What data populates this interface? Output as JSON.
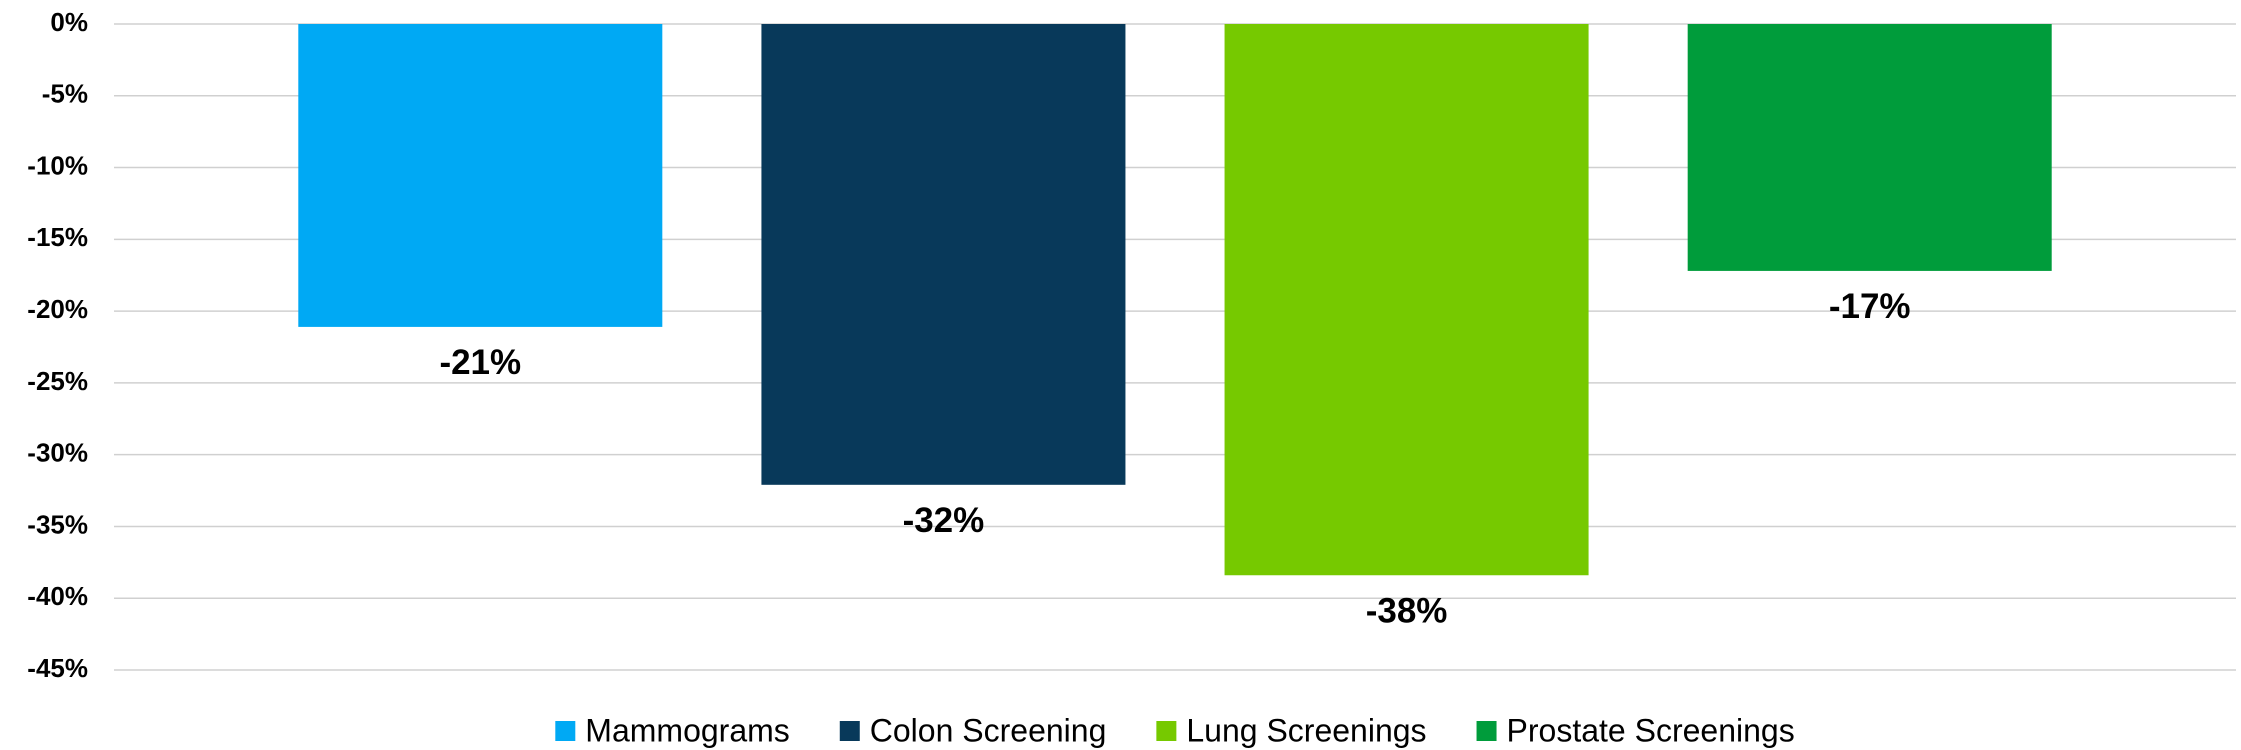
{
  "chart_data": {
    "type": "bar",
    "series": [
      {
        "name": "Mammograms",
        "color": "#00a9f4",
        "values": [
          -21.1
        ],
        "value_labels": [
          "-21%"
        ]
      },
      {
        "name": "Colon Screening",
        "color": "#08395a",
        "values": [
          -32.1
        ],
        "value_labels": [
          "-32%"
        ]
      },
      {
        "name": "Lung Screenings",
        "color": "#76c900",
        "values": [
          -38.4
        ],
        "value_labels": [
          "-38%"
        ]
      },
      {
        "name": "Prostate Screenings",
        "color": "#009c3b",
        "values": [
          -17.2
        ],
        "value_labels": [
          "-17%"
        ]
      }
    ],
    "ylim": [
      -45,
      0
    ],
    "yticks": [
      {
        "value": 0,
        "label": "0%"
      },
      {
        "value": -5,
        "label": "-5%"
      },
      {
        "value": -10,
        "label": "-10%"
      },
      {
        "value": -15,
        "label": "-15%"
      },
      {
        "value": -20,
        "label": "-20%"
      },
      {
        "value": -25,
        "label": "-25%"
      },
      {
        "value": -30,
        "label": "-30%"
      },
      {
        "value": -35,
        "label": "-35%"
      },
      {
        "value": -40,
        "label": "-40%"
      },
      {
        "value": -45,
        "label": "-45%"
      }
    ],
    "grid": true,
    "legend": "bottom"
  }
}
